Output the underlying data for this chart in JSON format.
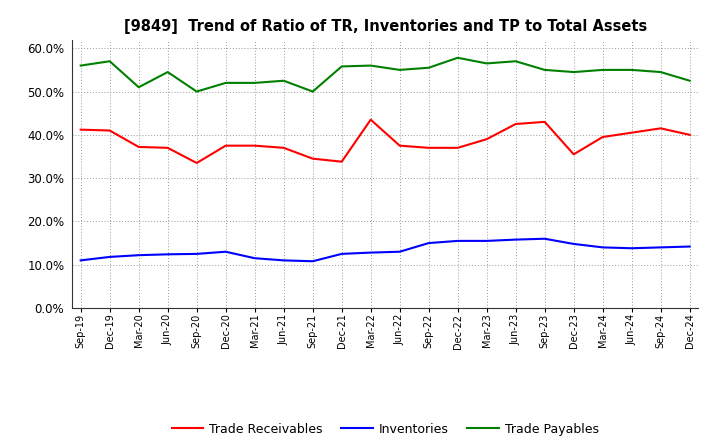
{
  "title": "[9849]  Trend of Ratio of TR, Inventories and TP to Total Assets",
  "x_labels": [
    "Sep-19",
    "Dec-19",
    "Mar-20",
    "Jun-20",
    "Sep-20",
    "Dec-20",
    "Mar-21",
    "Jun-21",
    "Sep-21",
    "Dec-21",
    "Mar-22",
    "Jun-22",
    "Sep-22",
    "Dec-22",
    "Mar-23",
    "Jun-23",
    "Sep-23",
    "Dec-23",
    "Mar-24",
    "Jun-24",
    "Sep-24",
    "Dec-24"
  ],
  "trade_receivables": [
    41.2,
    41.0,
    37.2,
    37.0,
    33.5,
    37.5,
    37.5,
    37.0,
    34.5,
    33.8,
    43.5,
    37.5,
    37.0,
    37.0,
    39.0,
    42.5,
    43.0,
    35.5,
    39.5,
    40.5,
    41.5,
    40.0
  ],
  "inventories": [
    11.0,
    11.8,
    12.2,
    12.4,
    12.5,
    13.0,
    11.5,
    11.0,
    10.8,
    12.5,
    12.8,
    13.0,
    15.0,
    15.5,
    15.5,
    15.8,
    16.0,
    14.8,
    14.0,
    13.8,
    14.0,
    14.2
  ],
  "trade_payables": [
    56.0,
    57.0,
    51.0,
    54.5,
    50.0,
    52.0,
    52.0,
    52.5,
    50.0,
    55.8,
    56.0,
    55.0,
    55.5,
    57.8,
    56.5,
    57.0,
    55.0,
    54.5,
    55.0,
    55.0,
    54.5,
    52.5
  ],
  "tr_color": "#FF0000",
  "inv_color": "#0000FF",
  "tp_color": "#008000",
  "ylim": [
    0,
    62
  ],
  "yticks": [
    0.0,
    10.0,
    20.0,
    30.0,
    40.0,
    50.0,
    60.0
  ],
  "bg_color": "#FFFFFF",
  "plot_bg_color": "#FFFFFF",
  "grid_color": "#999999",
  "legend_tr": "Trade Receivables",
  "legend_inv": "Inventories",
  "legend_tp": "Trade Payables"
}
